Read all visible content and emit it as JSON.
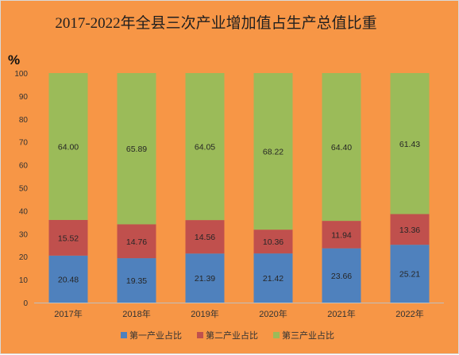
{
  "chart_data": {
    "type": "bar",
    "stacked": true,
    "title": "2017-2022年全县三次产业增加值占生产总值比重",
    "unit_label": "%",
    "xlabel": "",
    "ylabel": "",
    "ylim": [
      0,
      100
    ],
    "yticks": [
      0,
      10,
      20,
      30,
      40,
      50,
      60,
      70,
      80,
      90,
      100
    ],
    "grid": false,
    "legend_position": "bottom",
    "categories": [
      "2017年",
      "2018年",
      "2019年",
      "2020年",
      "2021年",
      "2022年"
    ],
    "series": [
      {
        "name": "第一产业占比",
        "color": "#4f81bd",
        "values": [
          20.48,
          19.35,
          21.39,
          21.42,
          23.66,
          25.21
        ]
      },
      {
        "name": "第二产业占比",
        "color": "#c0504d",
        "values": [
          15.52,
          14.76,
          14.56,
          10.36,
          11.94,
          13.36
        ]
      },
      {
        "name": "第三产业占比",
        "color": "#9bbb59",
        "values": [
          64.0,
          65.89,
          64.05,
          68.22,
          64.4,
          61.43
        ]
      }
    ],
    "data_labels": [
      [
        "20.48",
        "19.35",
        "21.39",
        "21.42",
        "23.66",
        "25.21"
      ],
      [
        "15.52",
        "14.76",
        "14.56",
        "10.36",
        "11.94",
        "13.36"
      ],
      [
        "64.00",
        "65.89",
        "64.05",
        "68.22",
        "64.40",
        "61.43"
      ]
    ]
  }
}
